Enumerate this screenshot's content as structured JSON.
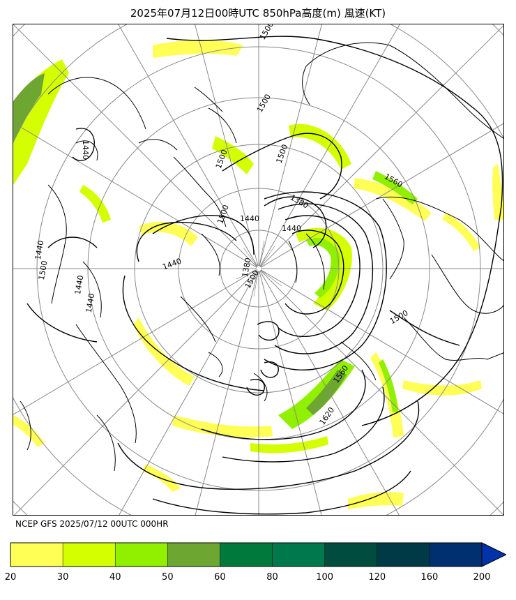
{
  "title": "2025年07月12日00時UTC 850hPa高度(m) 風速(KT)",
  "source": "NCEP GFS 2025/07/12 00UTC 000HR",
  "colorbar": {
    "ticks": [
      "20",
      "30",
      "40",
      "50",
      "60",
      "80",
      "100",
      "120",
      "160",
      "200"
    ],
    "colors": [
      "#ffff55",
      "#d4ff00",
      "#90f000",
      "#6ea632",
      "#007a3c",
      "#00784e",
      "#004d40",
      "#003a46",
      "#003070",
      "#0033aa"
    ]
  },
  "contour_labels": {
    "c1": "1500",
    "c2": "1500",
    "c3": "1500",
    "c4": "1440",
    "c5": "1560",
    "c6": "1380",
    "c7": "1440",
    "c8": "1440",
    "c9": "1500",
    "c10": "1500",
    "c11": "1440",
    "c12": "1440",
    "c13": "1500",
    "c14": "1380",
    "c15": "1560",
    "c16": "1620",
    "c17": "1500",
    "c18": "1440",
    "c19": "1500",
    "c20": "1440"
  }
}
